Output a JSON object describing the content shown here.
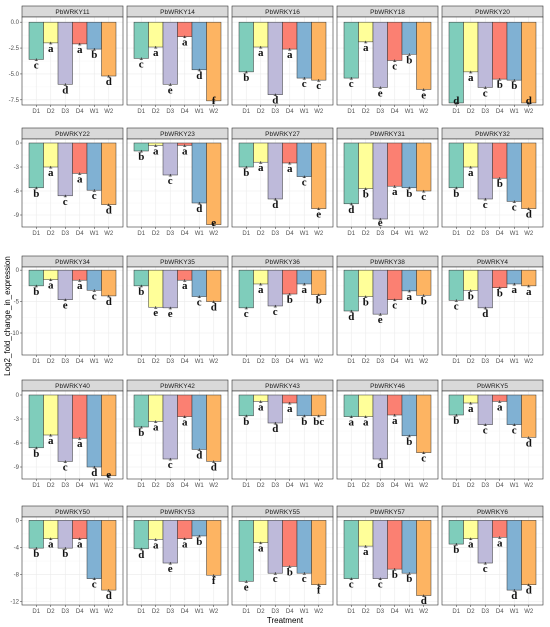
{
  "chart_data": {
    "type": "bar",
    "layout": "facet-grid",
    "xlabel": "Treatment",
    "ylabel": "Log2_fold_change_in_expression",
    "categories": [
      "D1",
      "D2",
      "D3",
      "D4",
      "W1",
      "W2"
    ],
    "colors": {
      "D1": "#7fcdbb",
      "D2": "#ffff99",
      "D3": "#bebada",
      "D4": "#fb8072",
      "W1": "#80b1d3",
      "W2": "#fdb462"
    },
    "rows": [
      {
        "ylim": [
          -8,
          0.5
        ],
        "ticks": [
          0,
          -2.5,
          -5,
          -7.5
        ],
        "tick_labels": [
          "0.0",
          "-2.5",
          "-5.0",
          "-7.5"
        ]
      },
      {
        "ylim": [
          -10.5,
          0.5
        ],
        "ticks": [
          0,
          -3,
          -6,
          -9
        ],
        "tick_labels": [
          "0",
          "-3",
          "-6",
          "-9"
        ]
      },
      {
        "ylim": [
          -13.5,
          0.5
        ],
        "ticks": [
          0,
          -5,
          -10
        ],
        "tick_labels": [
          "0",
          "-5",
          "-10"
        ]
      },
      {
        "ylim": [
          -10.5,
          0.5
        ],
        "ticks": [
          0,
          -3,
          -6,
          -9
        ],
        "tick_labels": [
          "0",
          "-3",
          "-6",
          "-9"
        ]
      },
      {
        "ylim": [
          -12.5,
          0.5
        ],
        "ticks": [
          0,
          -4,
          -8,
          -12
        ],
        "tick_labels": [
          "0",
          "-4",
          "-8",
          "-12"
        ]
      }
    ],
    "panels": [
      {
        "gene": "PbWRKY11",
        "values": [
          -3.6,
          -2.0,
          -6.0,
          -2.1,
          -2.6,
          -5.2
        ],
        "labels": [
          "c",
          "a",
          "d",
          "a",
          "b",
          "d"
        ]
      },
      {
        "gene": "PbWRKY14",
        "values": [
          -3.5,
          -2.4,
          -6.0,
          -1.4,
          -4.6,
          -7.6
        ],
        "labels": [
          "c",
          "a",
          "e",
          "a",
          "d",
          "f"
        ]
      },
      {
        "gene": "PbWRKY16",
        "values": [
          -4.8,
          -2.4,
          -7.0,
          -2.6,
          -5.4,
          -5.6
        ],
        "labels": [
          "b",
          "a",
          "d",
          "a",
          "c",
          "c"
        ]
      },
      {
        "gene": "PbWRKY18",
        "values": [
          -5.4,
          -1.9,
          -6.3,
          -3.7,
          -3.1,
          -6.5
        ],
        "labels": [
          "c",
          "a",
          "e",
          "c",
          "b",
          "e"
        ]
      },
      {
        "gene": "PbWRKY20",
        "values": [
          -7.8,
          -4.8,
          -6.3,
          -5.5,
          -5.6,
          -7.8
        ],
        "labels": [
          "d",
          "a",
          "c",
          "b",
          "b",
          "d"
        ]
      },
      {
        "gene": "PbWRKY22",
        "values": [
          -5.6,
          -3.0,
          -6.6,
          -3.8,
          -5.9,
          -7.7
        ],
        "labels": [
          "b",
          "a",
          "c",
          "a",
          "c",
          "d"
        ]
      },
      {
        "gene": "PbWRKY23",
        "values": [
          -1.0,
          -0.3,
          -4.0,
          -0.3,
          -7.5,
          -10.2
        ],
        "labels": [
          "b",
          "a",
          "c",
          "a",
          "d",
          "e"
        ]
      },
      {
        "gene": "PbWRKY27",
        "values": [
          -3.0,
          -2.4,
          -7.0,
          -2.5,
          -4.2,
          -8.2
        ],
        "labels": [
          "b",
          "a",
          "d",
          "a",
          "c",
          "e"
        ]
      },
      {
        "gene": "PbWRKY31",
        "values": [
          -7.6,
          -5.7,
          -9.5,
          -5.4,
          -5.6,
          -6.0
        ],
        "labels": [
          "d",
          "b",
          "e",
          "a",
          "b",
          "c"
        ]
      },
      {
        "gene": "PbWRKY32",
        "values": [
          -5.6,
          -3.0,
          -7.0,
          -4.4,
          -7.3,
          -8.2
        ],
        "labels": [
          "b",
          "a",
          "c",
          "b",
          "c",
          "d"
        ]
      },
      {
        "gene": "PbWRKY34",
        "values": [
          -2.5,
          -1.5,
          -4.7,
          -1.6,
          -3.2,
          -4.1
        ],
        "labels": [
          "b",
          "a",
          "e",
          "a",
          "c",
          "d"
        ]
      },
      {
        "gene": "PbWRKY35",
        "values": [
          -2.5,
          -5.9,
          -6.0,
          -1.6,
          -4.2,
          -5.0
        ],
        "labels": [
          "b",
          "e",
          "e",
          "a",
          "c",
          "d"
        ]
      },
      {
        "gene": "PbWRKY36",
        "values": [
          -6.0,
          -2.2,
          -5.7,
          -3.8,
          -2.2,
          -3.9
        ],
        "labels": [
          "c",
          "a",
          "c",
          "b",
          "a",
          "b"
        ]
      },
      {
        "gene": "PbWRKY38",
        "values": [
          -6.5,
          -4.2,
          -7.0,
          -4.7,
          -3.3,
          -4.0
        ],
        "labels": [
          "d",
          "b",
          "e",
          "c",
          "a",
          "b"
        ]
      },
      {
        "gene": "PbWRKY4",
        "values": [
          -4.8,
          -3.2,
          -6.0,
          -2.8,
          -2.2,
          -2.5
        ],
        "labels": [
          "c",
          "b",
          "d",
          "b",
          "a",
          "a"
        ]
      },
      {
        "gene": "PbWRKY40",
        "values": [
          -6.6,
          -5.0,
          -8.3,
          -5.4,
          -9.0,
          -10.1
        ],
        "labels": [
          "b",
          "a",
          "c",
          "a",
          "d",
          "e"
        ]
      },
      {
        "gene": "PbWRKY42",
        "values": [
          -4.0,
          -3.3,
          -8.0,
          -2.7,
          -6.8,
          -8.3
        ],
        "labels": [
          "b",
          "a",
          "c",
          "a",
          "d",
          "d"
        ]
      },
      {
        "gene": "PbWRKY43",
        "values": [
          -2.6,
          -0.8,
          -3.5,
          -1.0,
          -2.6,
          -2.6
        ],
        "labels": [
          "b",
          "a",
          "d",
          "a",
          "b",
          "bc"
        ]
      },
      {
        "gene": "PbWRKY46",
        "values": [
          -2.7,
          -2.7,
          -8.0,
          -2.5,
          -5.1,
          -7.2
        ],
        "labels": [
          "a",
          "a",
          "d",
          "a",
          "b",
          "c"
        ]
      },
      {
        "gene": "PbWRKY5",
        "values": [
          -2.5,
          -1.0,
          -3.7,
          -0.8,
          -3.7,
          -5.3
        ],
        "labels": [
          "b",
          "a",
          "c",
          "a",
          "c",
          "d"
        ]
      },
      {
        "gene": "PbWRKY50",
        "values": [
          -4.1,
          -2.7,
          -4.1,
          -2.7,
          -8.6,
          -10.3
        ],
        "labels": [
          "b",
          "a",
          "b",
          "a",
          "c",
          "d"
        ]
      },
      {
        "gene": "PbWRKY53",
        "values": [
          -4.2,
          -2.8,
          -6.3,
          -2.7,
          -2.3,
          -8.1
        ],
        "labels": [
          "d",
          "a",
          "e",
          "a",
          "b",
          "f"
        ]
      },
      {
        "gene": "PbWRKY55",
        "values": [
          -9.0,
          -3.3,
          -7.8,
          -6.8,
          -7.8,
          -9.5
        ],
        "labels": [
          "e",
          "a",
          "c",
          "b",
          "c",
          "f"
        ]
      },
      {
        "gene": "PbWRKY57",
        "values": [
          -8.6,
          -3.8,
          -8.6,
          -7.2,
          -7.8,
          -11.1
        ],
        "labels": [
          "c",
          "a",
          "c",
          "b",
          "b",
          "d"
        ]
      },
      {
        "gene": "PbWRKY6",
        "values": [
          -3.5,
          -2.7,
          -6.3,
          -2.5,
          -10.3,
          -9.5
        ],
        "labels": [
          "b",
          "a",
          "c",
          "a",
          "d",
          "d"
        ]
      }
    ]
  }
}
